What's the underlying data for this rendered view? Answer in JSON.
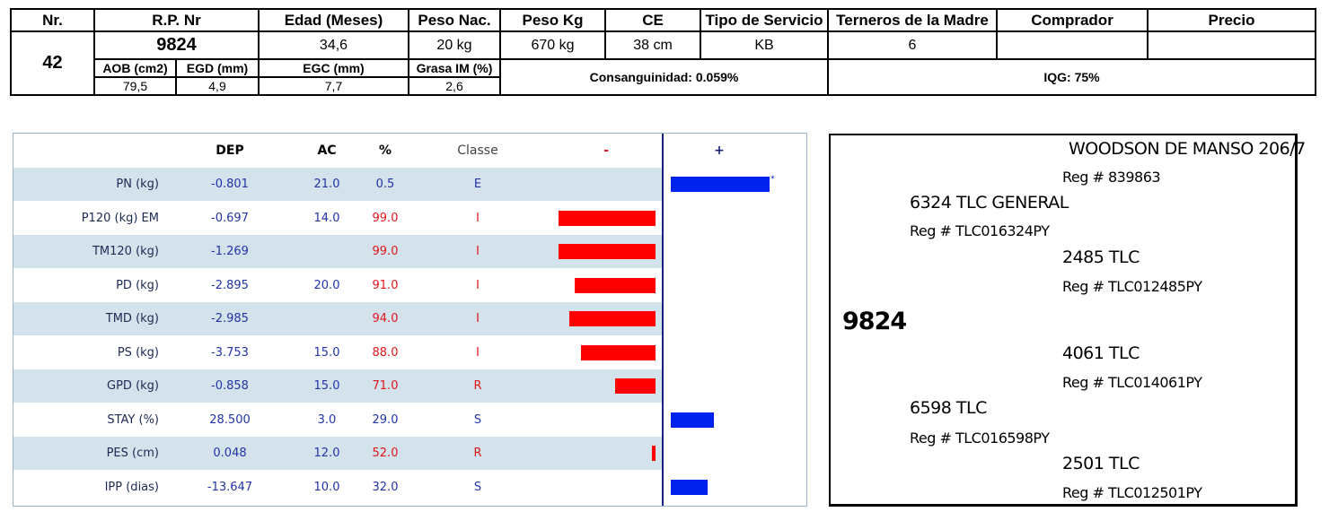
{
  "top": {
    "headers": {
      "nr": "Nr.",
      "rp": "R.P. Nr",
      "edad": "Edad (Meses)",
      "peso_nac": "Peso Nac.",
      "peso_kg": "Peso Kg",
      "ce": "CE",
      "tipo": "Tipo de Servicio",
      "terneros": "Terneros de la Madre",
      "comprador": "Comprador",
      "precio": "Precio"
    },
    "values": {
      "nr": "42",
      "rp": "9824",
      "edad": "34,6",
      "peso_nac": "20 kg",
      "peso_kg": "670 kg",
      "ce": "38 cm",
      "tipo": "KB",
      "terneros": "6",
      "comprador": "",
      "precio": ""
    },
    "sub_headers": {
      "aob": "AOB (cm2)",
      "egd": "EGD (mm)",
      "egc": "EGC (mm)",
      "grasa": "Grasa IM (%)"
    },
    "sub_values": {
      "aob": "79,5",
      "egd": "4,9",
      "egc": "7,7",
      "grasa": "2,6"
    },
    "consanguinidad": "Consanguinidad: 0.059%",
    "iqg": "IQG: 75%"
  },
  "epd": {
    "headers": {
      "dep": "DEP",
      "ac": "AC",
      "pct": "%",
      "classe": "Classe",
      "minus": "-",
      "plus": "+"
    },
    "colors": {
      "negative": "#ff0000",
      "positive": "#0022ee"
    },
    "rows": [
      {
        "label": "PN (kg)",
        "dep": "-0.801",
        "ac": "21.0",
        "pct": "0.5",
        "cls": "E",
        "bar": 110,
        "marker": "*"
      },
      {
        "label": "P120 (kg) EM",
        "dep": "-0.697",
        "ac": "14.0",
        "pct": "99.0",
        "cls": "I",
        "bar": -108
      },
      {
        "label": "TM120 (kg)",
        "dep": "-1.269",
        "ac": "",
        "pct": "99.0",
        "cls": "I",
        "bar": -108
      },
      {
        "label": "PD (kg)",
        "dep": "-2.895",
        "ac": "20.0",
        "pct": "91.0",
        "cls": "I",
        "bar": -90
      },
      {
        "label": "TMD (kg)",
        "dep": "-2.985",
        "ac": "",
        "pct": "94.0",
        "cls": "I",
        "bar": -96
      },
      {
        "label": "PS (kg)",
        "dep": "-3.753",
        "ac": "15.0",
        "pct": "88.0",
        "cls": "I",
        "bar": -83
      },
      {
        "label": "GPD (kg)",
        "dep": "-0.858",
        "ac": "15.0",
        "pct": "71.0",
        "cls": "R",
        "bar": -45
      },
      {
        "label": "STAY (%)",
        "dep": "28.500",
        "ac": "3.0",
        "pct": "29.0",
        "cls": "S",
        "bar": 48
      },
      {
        "label": "PES (cm)",
        "dep": "0.048",
        "ac": "12.0",
        "pct": "52.0",
        "cls": "R",
        "bar": -4
      },
      {
        "label": "IPP (dias)",
        "dep": "-13.647",
        "ac": "10.0",
        "pct": "32.0",
        "cls": "S",
        "bar": 41
      }
    ]
  },
  "pedigree": {
    "animal": "9824",
    "sire": {
      "name": "6324 TLC GENERAL",
      "reg": "Reg # TLC016324PY"
    },
    "sire_sire": {
      "name": "WOODSON DE MANSO 206/7",
      "reg": "Reg # 839863"
    },
    "sire_dam": {
      "name": "2485 TLC",
      "reg": "Reg # TLC012485PY"
    },
    "dam": {
      "name": "6598 TLC",
      "reg": "Reg # TLC016598PY"
    },
    "dam_sire": {
      "name": "4061 TLC",
      "reg": "Reg # TLC014061PY"
    },
    "dam_dam": {
      "name": "2501 TLC",
      "reg": "Reg # TLC012501PY"
    }
  }
}
